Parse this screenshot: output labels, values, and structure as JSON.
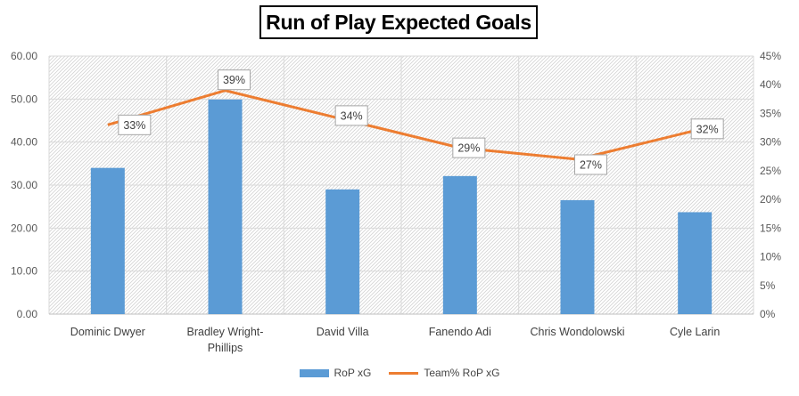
{
  "chart_data": {
    "type": "bar",
    "title": "Run of Play Expected Goals",
    "categories": [
      "Dominic Dwyer",
      "Bradley Wright-Phillips",
      "David Villa",
      "Fanendo Adi",
      "Chris Wondolowski",
      "Cyle Larin"
    ],
    "category_lines": [
      [
        "Dominic Dwyer"
      ],
      [
        "Bradley Wright-",
        "Phillips"
      ],
      [
        "David Villa"
      ],
      [
        "Fanendo Adi"
      ],
      [
        "Chris Wondolowski"
      ],
      [
        "Cyle Larin"
      ]
    ],
    "series": [
      {
        "name": "RoP xG",
        "type": "bar",
        "axis": "left",
        "color": "#5b9bd5",
        "values": [
          34.0,
          49.9,
          29.0,
          32.1,
          26.5,
          23.7
        ]
      },
      {
        "name": "Team% RoP xG",
        "type": "line",
        "axis": "right",
        "color": "#ed7d31",
        "values": [
          33,
          39,
          34,
          29,
          27,
          32
        ],
        "labels": [
          "33%",
          "39%",
          "34%",
          "29%",
          "27%",
          "32%"
        ]
      }
    ],
    "y_left": {
      "ylim": [
        0,
        60
      ],
      "ticks": [
        "0.00",
        "10.00",
        "20.00",
        "30.00",
        "40.00",
        "50.00",
        "60.00"
      ]
    },
    "y_right": {
      "ylim": [
        0,
        45
      ],
      "ticks": [
        "0%",
        "5%",
        "10%",
        "15%",
        "20%",
        "25%",
        "30%",
        "35%",
        "40%",
        "45%"
      ]
    },
    "grid": true,
    "legend_position": "bottom"
  }
}
